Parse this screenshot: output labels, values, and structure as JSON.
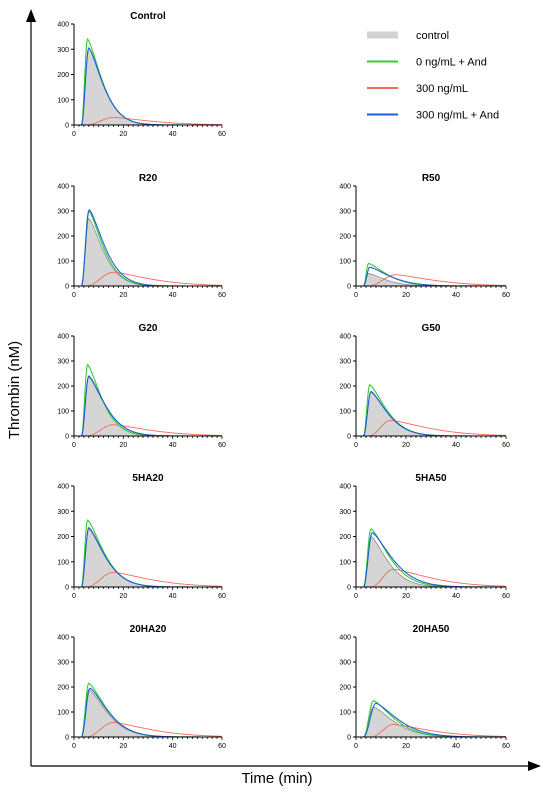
{
  "figure": {
    "ylabel": "Thrombin (nM)",
    "xlabel": "Time (min)"
  },
  "colors": {
    "control": "#d3d3d3",
    "and_0": "#33cc33",
    "ng300": "#f26b5b",
    "ng300_and": "#1f5fd6",
    "axis": "#000000"
  },
  "legend": [
    {
      "key": "control",
      "label": "control",
      "style": "band"
    },
    {
      "key": "and_0",
      "label": "0 ng/mL + And",
      "style": "line"
    },
    {
      "key": "ng300",
      "label": "300 ng/mL",
      "style": "line"
    },
    {
      "key": "ng300_and",
      "label": "300 ng/mL + And",
      "style": "line"
    }
  ],
  "chart_data": [
    {
      "type": "area",
      "title": "Control",
      "x_ticks": [
        0,
        20,
        40,
        60
      ],
      "y_ticks": [
        0,
        100,
        200,
        300,
        400
      ],
      "xlim": [
        0,
        60
      ],
      "ylim": [
        0,
        400
      ],
      "series": [
        {
          "name": "control",
          "peak": 305,
          "ttp": 6,
          "onset": 3,
          "tail": 8,
          "style": "area"
        },
        {
          "name": "0 ng/mL + And",
          "peak": 340,
          "ttp": 5.5,
          "onset": 3,
          "tail": 8
        },
        {
          "name": "300 ng/mL",
          "peak": 30,
          "ttp": 16,
          "onset": 5,
          "tail": 20
        },
        {
          "name": "300 ng/mL + And",
          "peak": 305,
          "ttp": 6,
          "onset": 3,
          "tail": 8
        }
      ]
    },
    {
      "type": "area",
      "title": "R20",
      "x_ticks": [
        0,
        20,
        40,
        60
      ],
      "y_ticks": [
        0,
        100,
        200,
        300,
        400
      ],
      "xlim": [
        0,
        60
      ],
      "ylim": [
        0,
        400
      ],
      "series": [
        {
          "name": "control",
          "peak": 270,
          "ttp": 6,
          "onset": 3,
          "tail": 8,
          "style": "area"
        },
        {
          "name": "0 ng/mL + And",
          "peak": 300,
          "ttp": 6,
          "onset": 3,
          "tail": 8
        },
        {
          "name": "300 ng/mL",
          "peak": 55,
          "ttp": 16,
          "onset": 5,
          "tail": 20
        },
        {
          "name": "300 ng/mL + And",
          "peak": 305,
          "ttp": 6.2,
          "onset": 3,
          "tail": 8.5
        }
      ]
    },
    {
      "type": "area",
      "title": "R50",
      "x_ticks": [
        0,
        20,
        40,
        60
      ],
      "y_ticks": [
        0,
        100,
        200,
        300,
        400
      ],
      "xlim": [
        0,
        60
      ],
      "ylim": [
        0,
        400
      ],
      "series": [
        {
          "name": "control",
          "peak": 50,
          "ttp": 5,
          "onset": 3,
          "tail": 9,
          "style": "area"
        },
        {
          "name": "0 ng/mL + And",
          "peak": 90,
          "ttp": 5,
          "onset": 3,
          "tail": 10
        },
        {
          "name": "300 ng/mL",
          "peak": 45,
          "ttp": 16,
          "onset": 5,
          "tail": 20
        },
        {
          "name": "300 ng/mL + And",
          "peak": 75,
          "ttp": 5.5,
          "onset": 3,
          "tail": 11
        }
      ]
    },
    {
      "type": "area",
      "title": "G20",
      "x_ticks": [
        0,
        20,
        40,
        60
      ],
      "y_ticks": [
        0,
        100,
        200,
        300,
        400
      ],
      "xlim": [
        0,
        60
      ],
      "ylim": [
        0,
        400
      ],
      "series": [
        {
          "name": "control",
          "peak": 235,
          "ttp": 6,
          "onset": 3,
          "tail": 9,
          "style": "area"
        },
        {
          "name": "0 ng/mL + And",
          "peak": 285,
          "ttp": 5.5,
          "onset": 3,
          "tail": 8
        },
        {
          "name": "300 ng/mL",
          "peak": 45,
          "ttp": 16,
          "onset": 5,
          "tail": 20
        },
        {
          "name": "300 ng/mL + And",
          "peak": 240,
          "ttp": 6,
          "onset": 3,
          "tail": 9
        }
      ]
    },
    {
      "type": "area",
      "title": "G50",
      "x_ticks": [
        0,
        20,
        40,
        60
      ],
      "y_ticks": [
        0,
        100,
        200,
        300,
        400
      ],
      "xlim": [
        0,
        60
      ],
      "ylim": [
        0,
        400
      ],
      "series": [
        {
          "name": "control",
          "peak": 175,
          "ttp": 6,
          "onset": 3,
          "tail": 9,
          "style": "area"
        },
        {
          "name": "0 ng/mL + And",
          "peak": 205,
          "ttp": 5.5,
          "onset": 3,
          "tail": 9
        },
        {
          "name": "300 ng/mL",
          "peak": 62,
          "ttp": 14,
          "onset": 5,
          "tail": 20
        },
        {
          "name": "300 ng/mL + And",
          "peak": 178,
          "ttp": 6,
          "onset": 3,
          "tail": 9
        }
      ]
    },
    {
      "type": "area",
      "title": "5HA20",
      "x_ticks": [
        0,
        20,
        40,
        60
      ],
      "y_ticks": [
        0,
        100,
        200,
        300,
        400
      ],
      "xlim": [
        0,
        60
      ],
      "ylim": [
        0,
        400
      ],
      "series": [
        {
          "name": "control",
          "peak": 230,
          "ttp": 6,
          "onset": 3,
          "tail": 9,
          "style": "area"
        },
        {
          "name": "0 ng/mL + And",
          "peak": 265,
          "ttp": 5.5,
          "onset": 3,
          "tail": 9
        },
        {
          "name": "300 ng/mL",
          "peak": 58,
          "ttp": 16,
          "onset": 5,
          "tail": 20
        },
        {
          "name": "300 ng/mL + And",
          "peak": 235,
          "ttp": 6,
          "onset": 3,
          "tail": 9
        }
      ]
    },
    {
      "type": "area",
      "title": "5HA50",
      "x_ticks": [
        0,
        20,
        40,
        60
      ],
      "y_ticks": [
        0,
        100,
        200,
        300,
        400
      ],
      "xlim": [
        0,
        60
      ],
      "ylim": [
        0,
        400
      ],
      "series": [
        {
          "name": "control",
          "peak": 200,
          "ttp": 6,
          "onset": 3,
          "tail": 9,
          "style": "area"
        },
        {
          "name": "0 ng/mL + And",
          "peak": 230,
          "ttp": 6,
          "onset": 3,
          "tail": 10
        },
        {
          "name": "300 ng/mL",
          "peak": 70,
          "ttp": 15,
          "onset": 6,
          "tail": 20
        },
        {
          "name": "300 ng/mL + And",
          "peak": 215,
          "ttp": 6.5,
          "onset": 3,
          "tail": 11
        }
      ]
    },
    {
      "type": "area",
      "title": "20HA20",
      "x_ticks": [
        0,
        20,
        40,
        60
      ],
      "y_ticks": [
        0,
        100,
        200,
        300,
        400
      ],
      "xlim": [
        0,
        60
      ],
      "ylim": [
        0,
        400
      ],
      "series": [
        {
          "name": "control",
          "peak": 190,
          "ttp": 6,
          "onset": 3,
          "tail": 10,
          "style": "area"
        },
        {
          "name": "0 ng/mL + And",
          "peak": 215,
          "ttp": 6,
          "onset": 3,
          "tail": 10
        },
        {
          "name": "300 ng/mL",
          "peak": 58,
          "ttp": 16,
          "onset": 5,
          "tail": 20
        },
        {
          "name": "300 ng/mL + And",
          "peak": 195,
          "ttp": 6.5,
          "onset": 3,
          "tail": 10
        }
      ]
    },
    {
      "type": "area",
      "title": "20HA50",
      "x_ticks": [
        0,
        20,
        40,
        60
      ],
      "y_ticks": [
        0,
        100,
        200,
        300,
        400
      ],
      "xlim": [
        0,
        60
      ],
      "ylim": [
        0,
        400
      ],
      "series": [
        {
          "name": "control",
          "peak": 120,
          "ttp": 7,
          "onset": 3,
          "tail": 11,
          "style": "area"
        },
        {
          "name": "0 ng/mL + And",
          "peak": 145,
          "ttp": 7,
          "onset": 3,
          "tail": 11
        },
        {
          "name": "300 ng/mL",
          "peak": 50,
          "ttp": 15,
          "onset": 6,
          "tail": 20
        },
        {
          "name": "300 ng/mL + And",
          "peak": 135,
          "ttp": 8,
          "onset": 3,
          "tail": 12
        }
      ]
    }
  ]
}
